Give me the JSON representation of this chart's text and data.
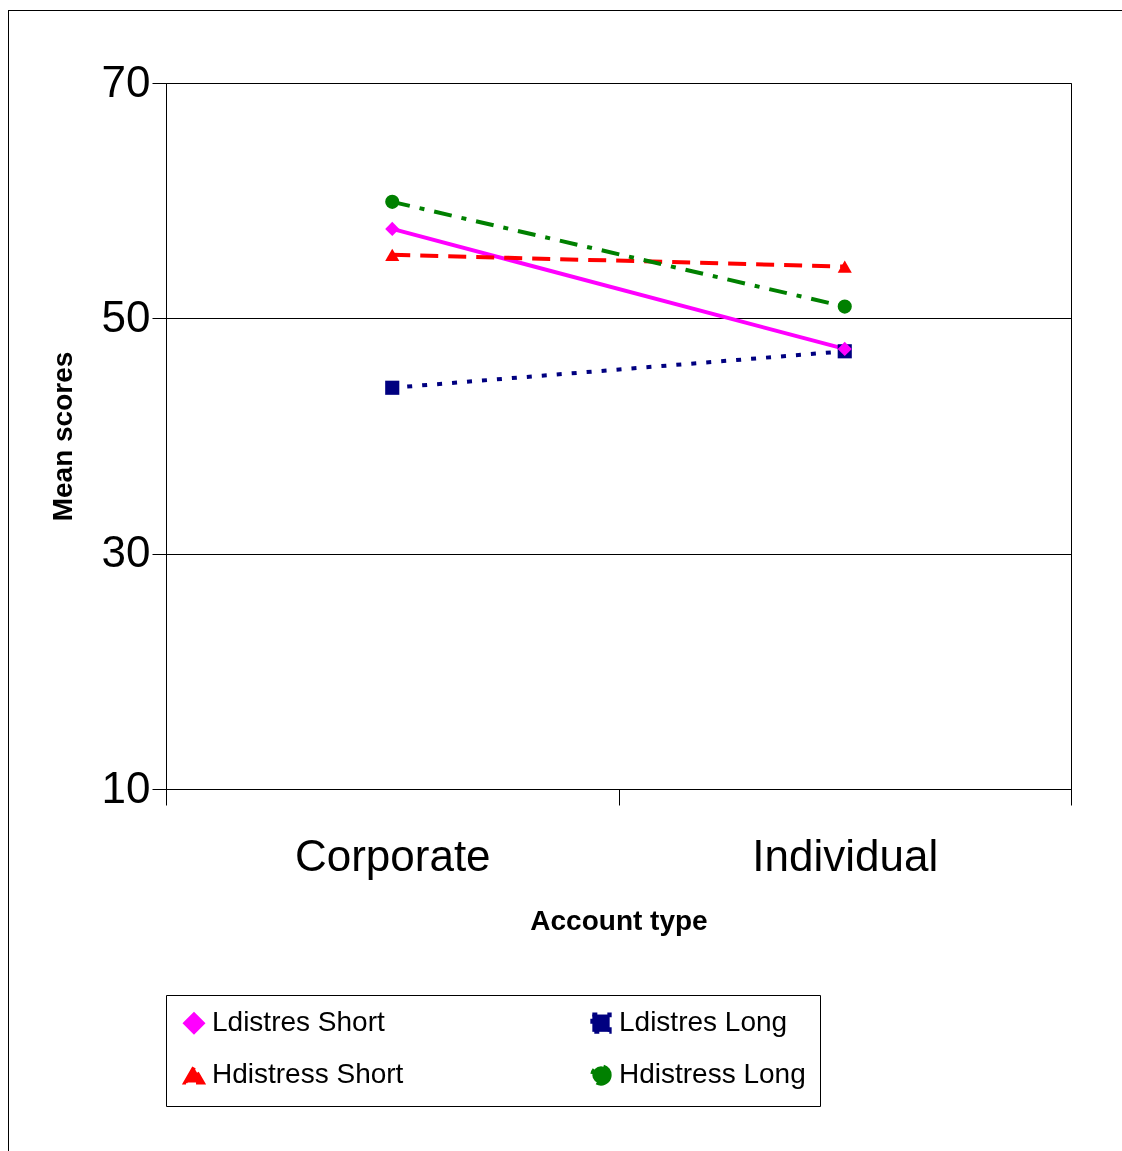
{
  "chart_data": {
    "type": "line",
    "xlabel": "Account type",
    "ylabel": "Mean scores",
    "categories": [
      "Corporate",
      "Individual"
    ],
    "series": [
      {
        "name": "Ldistres Short",
        "color": "#ff00ff",
        "values": [
          57.6,
          47.4
        ],
        "marker": "diamond",
        "line_style": "solid"
      },
      {
        "name": "Ldistres Long",
        "color": "#000080",
        "values": [
          44.1,
          47.2
        ],
        "marker": "square",
        "line_style": "dotted"
      },
      {
        "name": "Hdistress Short",
        "color": "#ff0000",
        "values": [
          55.4,
          54.4
        ],
        "marker": "triangle",
        "line_style": "dashed"
      },
      {
        "name": "Hdistress Long",
        "color": "#008000",
        "values": [
          59.9,
          51.0
        ],
        "marker": "circle",
        "line_style": "dashdot"
      }
    ],
    "ylim": [
      10,
      70
    ],
    "yticks": [
      10,
      30,
      50,
      70
    ],
    "grid": "y",
    "legend": "bottom"
  }
}
